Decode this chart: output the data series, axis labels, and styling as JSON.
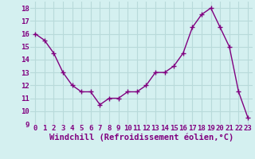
{
  "x": [
    0,
    1,
    2,
    3,
    4,
    5,
    6,
    7,
    8,
    9,
    10,
    11,
    12,
    13,
    14,
    15,
    16,
    17,
    18,
    19,
    20,
    21,
    22,
    23
  ],
  "y": [
    16.0,
    15.5,
    14.5,
    13.0,
    12.0,
    11.5,
    11.5,
    10.5,
    11.0,
    11.0,
    11.5,
    11.5,
    12.0,
    13.0,
    13.0,
    13.5,
    14.5,
    16.5,
    17.5,
    18.0,
    16.5,
    15.0,
    11.5,
    9.5
  ],
  "line_color": "#800080",
  "marker": "+",
  "marker_size": 4,
  "marker_linewidth": 1.0,
  "xlabel": "Windchill (Refroidissement éolien,°C)",
  "xlabel_fontsize": 7.5,
  "ylim": [
    9,
    18.5
  ],
  "yticks": [
    9,
    10,
    11,
    12,
    13,
    14,
    15,
    16,
    17,
    18
  ],
  "xticks": [
    0,
    1,
    2,
    3,
    4,
    5,
    6,
    7,
    8,
    9,
    10,
    11,
    12,
    13,
    14,
    15,
    16,
    17,
    18,
    19,
    20,
    21,
    22,
    23
  ],
  "bg_color": "#d4f0f0",
  "grid_color": "#b8dada",
  "tick_color": "#800080",
  "tick_fontsize": 6.5,
  "linewidth": 1.0,
  "fig_width": 3.2,
  "fig_height": 2.0,
  "dpi": 100
}
